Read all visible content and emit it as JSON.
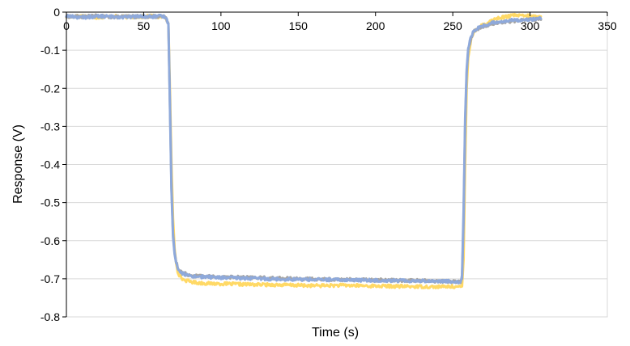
{
  "chart_data": {
    "type": "line",
    "title": "",
    "xlabel": "Time (s)",
    "ylabel": "Response (V)",
    "xlim": [
      0,
      350
    ],
    "ylim": [
      -0.8,
      0
    ],
    "xticks": [
      0,
      50,
      100,
      150,
      200,
      250,
      300,
      350
    ],
    "yticks": [
      0,
      -0.1,
      -0.2,
      -0.3,
      -0.4,
      -0.5,
      -0.6,
      -0.7,
      -0.8
    ],
    "x_axis_position": "top",
    "grid": "horizontal",
    "legend": "none",
    "series": [
      {
        "name": "Yellow trace",
        "color": "#FFD966",
        "x": [
          0,
          10,
          20,
          30,
          40,
          50,
          55,
          60,
          64,
          66,
          67,
          68,
          69,
          70,
          71,
          72,
          73,
          74,
          75,
          76,
          78,
          80,
          84,
          90,
          100,
          120,
          140,
          160,
          180,
          200,
          220,
          240,
          250,
          255,
          256,
          257,
          258,
          259,
          260,
          262,
          264,
          268,
          272,
          276,
          280,
          285,
          290,
          295,
          300,
          307
        ],
        "y": [
          -0.012,
          -0.01,
          -0.014,
          -0.011,
          -0.013,
          -0.012,
          -0.01,
          -0.013,
          -0.012,
          -0.03,
          -0.2,
          -0.4,
          -0.54,
          -0.62,
          -0.66,
          -0.68,
          -0.69,
          -0.695,
          -0.7,
          -0.703,
          -0.705,
          -0.707,
          -0.71,
          -0.712,
          -0.713,
          -0.715,
          -0.716,
          -0.718,
          -0.717,
          -0.719,
          -0.72,
          -0.721,
          -0.72,
          -0.722,
          -0.72,
          -0.65,
          -0.4,
          -0.2,
          -0.12,
          -0.07,
          -0.05,
          -0.035,
          -0.03,
          -0.02,
          -0.015,
          -0.012,
          -0.008,
          -0.01,
          -0.01,
          -0.012
        ],
        "noise": 0.004
      },
      {
        "name": "Gray trace",
        "color": "#A5A5A5",
        "x": [
          0,
          10,
          20,
          30,
          40,
          50,
          55,
          60,
          64,
          66,
          67,
          68,
          69,
          70,
          71,
          72,
          73,
          74,
          75,
          76,
          78,
          80,
          84,
          90,
          100,
          120,
          140,
          160,
          180,
          200,
          220,
          240,
          250,
          255,
          256,
          257,
          258,
          259,
          260,
          262,
          264,
          268,
          272,
          276,
          280,
          285,
          290,
          295,
          300,
          307
        ],
        "y": [
          -0.011,
          -0.012,
          -0.01,
          -0.013,
          -0.011,
          -0.012,
          -0.011,
          -0.012,
          -0.013,
          -0.03,
          -0.24,
          -0.46,
          -0.58,
          -0.63,
          -0.655,
          -0.668,
          -0.675,
          -0.68,
          -0.683,
          -0.685,
          -0.688,
          -0.69,
          -0.692,
          -0.693,
          -0.695,
          -0.697,
          -0.699,
          -0.701,
          -0.702,
          -0.703,
          -0.704,
          -0.706,
          -0.707,
          -0.708,
          -0.7,
          -0.55,
          -0.3,
          -0.16,
          -0.1,
          -0.065,
          -0.05,
          -0.04,
          -0.035,
          -0.03,
          -0.027,
          -0.025,
          -0.023,
          -0.021,
          -0.02,
          -0.018
        ],
        "noise": 0.004
      },
      {
        "name": "Blue trace",
        "color": "#8EA9DB",
        "x": [
          0,
          10,
          20,
          30,
          40,
          50,
          55,
          60,
          64,
          66,
          67,
          68,
          69,
          70,
          71,
          72,
          73,
          74,
          75,
          76,
          78,
          80,
          84,
          90,
          100,
          120,
          140,
          160,
          180,
          200,
          220,
          240,
          250,
          255,
          256,
          257,
          258,
          259,
          260,
          262,
          264,
          268,
          272,
          276,
          280,
          285,
          290,
          295,
          300,
          307
        ],
        "y": [
          -0.01,
          -0.014,
          -0.011,
          -0.012,
          -0.013,
          -0.011,
          -0.012,
          -0.011,
          -0.012,
          -0.03,
          -0.25,
          -0.47,
          -0.59,
          -0.635,
          -0.658,
          -0.67,
          -0.677,
          -0.682,
          -0.685,
          -0.687,
          -0.69,
          -0.692,
          -0.694,
          -0.695,
          -0.697,
          -0.699,
          -0.701,
          -0.702,
          -0.703,
          -0.704,
          -0.705,
          -0.706,
          -0.707,
          -0.708,
          -0.69,
          -0.52,
          -0.28,
          -0.15,
          -0.095,
          -0.062,
          -0.048,
          -0.038,
          -0.033,
          -0.028,
          -0.025,
          -0.023,
          -0.021,
          -0.02,
          -0.019,
          -0.017
        ],
        "noise": 0.004
      }
    ]
  }
}
